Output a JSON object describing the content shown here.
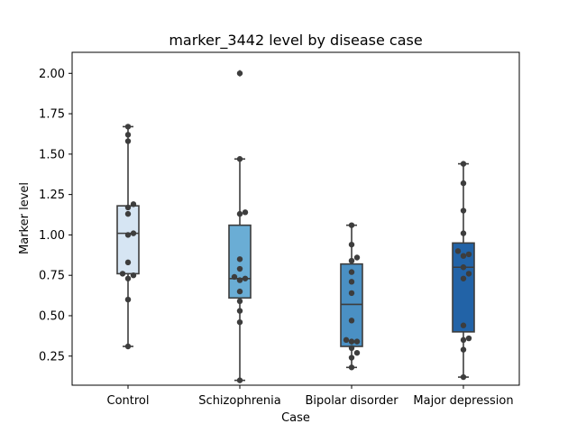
{
  "chart_data": {
    "type": "box",
    "title": "marker_3442 level by disease case",
    "xlabel": "Case",
    "ylabel": "Marker level",
    "ylim": [
      0.07,
      2.13
    ],
    "yticks": [
      "0.25",
      "0.50",
      "0.75",
      "1.00",
      "1.25",
      "1.50",
      "1.75",
      "2.00"
    ],
    "ytick_values": [
      0.25,
      0.5,
      0.75,
      1.0,
      1.25,
      1.5,
      1.75,
      2.0
    ],
    "grid": false,
    "categories": [
      "Control",
      "Schizophrenia",
      "Bipolar disorder",
      "Major depression"
    ],
    "colors": [
      "#d6e5f3",
      "#6aadd5",
      "#4a90c4",
      "#2263a7"
    ],
    "boxes": [
      {
        "q1": 0.76,
        "median": 1.01,
        "q3": 1.18,
        "whisker_low": 0.31,
        "whisker_high": 1.67,
        "outliers": []
      },
      {
        "q1": 0.61,
        "median": 0.73,
        "q3": 1.06,
        "whisker_low": 0.1,
        "whisker_high": 1.47,
        "outliers": [
          2.0
        ]
      },
      {
        "q1": 0.31,
        "median": 0.57,
        "q3": 0.82,
        "whisker_low": 0.18,
        "whisker_high": 1.06,
        "outliers": []
      },
      {
        "q1": 0.4,
        "median": 0.8,
        "q3": 0.95,
        "whisker_low": 0.12,
        "whisker_high": 1.44,
        "outliers": []
      }
    ],
    "points": [
      [
        0.31,
        0.6,
        0.73,
        0.75,
        0.76,
        0.83,
        1.0,
        1.01,
        1.13,
        1.17,
        1.19,
        1.58,
        1.62,
        1.67
      ],
      [
        0.1,
        0.46,
        0.53,
        0.59,
        0.65,
        0.72,
        0.73,
        0.74,
        0.79,
        0.85,
        1.13,
        1.14,
        1.47,
        2.0
      ],
      [
        0.18,
        0.24,
        0.27,
        0.3,
        0.34,
        0.34,
        0.35,
        0.47,
        0.64,
        0.71,
        0.77,
        0.84,
        0.86,
        0.94,
        1.06
      ],
      [
        0.12,
        0.29,
        0.35,
        0.36,
        0.44,
        0.73,
        0.76,
        0.8,
        0.87,
        0.88,
        0.9,
        1.01,
        1.15,
        1.32,
        1.44
      ]
    ]
  }
}
